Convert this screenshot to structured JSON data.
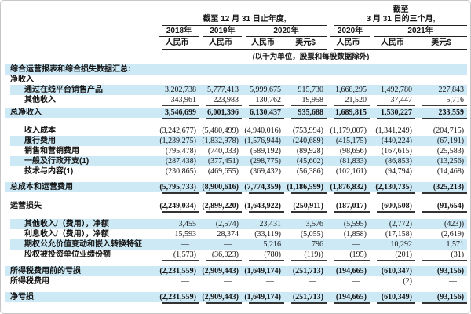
{
  "colors": {
    "highlight": "#cde9f6",
    "rule": "#333333",
    "border": "#c6c6c6"
  },
  "header": {
    "group1": "截至 12 月 31 日止年度,",
    "group2_line1": "截至",
    "group2_line2": "3 月 31 日的三个月,",
    "years": [
      {
        "label": "2018年"
      },
      {
        "label": "2019年"
      },
      {
        "label": "2020年"
      },
      {
        "label": "2020年"
      },
      {
        "label": "2021年"
      }
    ],
    "currencies": [
      "人民币",
      "人民币",
      "人民币",
      "美元$",
      "人民币",
      "人民币",
      "美元$"
    ],
    "unit_note": "(以千为单位，股票和每股数据除外)"
  },
  "rows": [
    {
      "label": "综合运营报表和综合损失数据汇总:",
      "indent": 0,
      "bold": true,
      "highlight": true,
      "values": [
        "",
        "",
        "",
        "",
        "",
        "",
        ""
      ]
    },
    {
      "label": "净收入",
      "indent": 0,
      "bold": true,
      "highlight": false,
      "values": [
        "",
        "",
        "",
        "",
        "",
        "",
        ""
      ]
    },
    {
      "label": "通过在线平台销售产品",
      "indent": 1,
      "bold": false,
      "highlight": true,
      "values": [
        "3,202,738",
        "5,777,413",
        "5,999,675",
        "915,730",
        "1,668,295",
        "1,492,780",
        "227,843"
      ]
    },
    {
      "label": "其他收入",
      "indent": 1,
      "bold": false,
      "highlight": false,
      "values": [
        "343,961",
        "223,983",
        "130,762",
        "19,958",
        "21,520",
        "37,447",
        "5,716"
      ]
    },
    {
      "type": "rule",
      "style": "thin",
      "gap": 3
    },
    {
      "label": "总净收入",
      "indent": 0,
      "bold": true,
      "highlight": true,
      "values": [
        "3,546,699",
        "6,001,396",
        "6,130,437",
        "935,688",
        "1,689,815",
        "1,530,227",
        "233,559"
      ]
    },
    {
      "type": "rule",
      "style": "thick",
      "gap": 10
    },
    {
      "label": "收入成本",
      "indent": 1,
      "bold": false,
      "highlight": false,
      "values": [
        "(3,242,677)",
        "(5,480,499)",
        "(4,940,016)",
        "(753,994)",
        "(1,179,007)",
        "(1,341,249)",
        "(204,715)"
      ]
    },
    {
      "label": "履行费用",
      "indent": 1,
      "bold": false,
      "highlight": true,
      "values": [
        "(1,239,275)",
        "(1,832,978)",
        "(1,576,944)",
        "(240,689)",
        "(415,175)",
        "(440,224)",
        "(67,191)"
      ]
    },
    {
      "label": "销售和营销费用",
      "indent": 1,
      "bold": false,
      "highlight": false,
      "values": [
        "(795,478)",
        "(740,033)",
        "(589,192)",
        "(89,928)",
        "(98,656)",
        "(167,615)",
        "(25,583)"
      ]
    },
    {
      "label": "一般及行政开支(1)",
      "indent": 1,
      "bold": false,
      "highlight": true,
      "values": [
        "(287,438)",
        "(377,451)",
        "(298,775)",
        "(45,602)",
        "(81,833)",
        "(86,853)",
        "(13,256)"
      ]
    },
    {
      "label": "技术与内容(1)",
      "indent": 1,
      "bold": false,
      "highlight": false,
      "values": [
        "(230,865)",
        "(469,655)",
        "(369,432)",
        "(56,386)",
        "(102,161)",
        "(94,794)",
        "(14,468)"
      ]
    },
    {
      "type": "rule",
      "style": "thin",
      "gap": 7
    },
    {
      "label": "总成本和运营费用",
      "indent": 0,
      "bold": true,
      "highlight": true,
      "values": [
        "(5,795,733)",
        "(8,900,616)",
        "(7,774,359)",
        "(1,186,599)",
        "(1,876,832)",
        "(2,130,735)",
        "(325,213)"
      ]
    },
    {
      "type": "rule",
      "style": "thick",
      "gap": 11
    },
    {
      "label": "运营损失",
      "indent": 0,
      "bold": true,
      "highlight": false,
      "values": [
        "(2,249,034)",
        "(2,899,220)",
        "(1,643,922)",
        "(250,911)",
        "(187,017)",
        "(600,508)",
        "(91,654)"
      ]
    },
    {
      "type": "rule",
      "style": "thick",
      "gap": 10
    },
    {
      "label": "其他收入/（费用），净额",
      "indent": 1,
      "bold": false,
      "highlight": true,
      "values": [
        "3,455",
        "(2,574)",
        "23,431",
        "3,576",
        "(5,595)",
        "(2,772)",
        "(423))"
      ]
    },
    {
      "label": "利息收入/（费用），净额",
      "indent": 1,
      "bold": false,
      "highlight": false,
      "values": [
        "15,593",
        "28,374",
        "(33,119)",
        "(5,055)",
        "(1,858)",
        "(17,158)",
        "(2,619)"
      ]
    },
    {
      "label": "期权公允价值变动和嵌入转换特征",
      "indent": 1,
      "bold": false,
      "highlight": true,
      "values": [
        "—",
        "—",
        "5,216",
        "796",
        "—",
        "10,292",
        "1,571"
      ]
    },
    {
      "label": "股权被投资单位业绩份额",
      "indent": 1,
      "bold": false,
      "highlight": false,
      "values": [
        "(1,573)",
        "(36,023)",
        "(780)",
        "(119))",
        "(195)",
        "(201)",
        "(31)"
      ]
    },
    {
      "type": "rule",
      "style": "thin",
      "gap": 8
    },
    {
      "label": "所得税费用前的亏损",
      "indent": 0,
      "bold": true,
      "highlight": true,
      "values": [
        "(2,231,559)",
        "(2,909,443)",
        "(1,649,174)",
        "(251,713)",
        "(194,665)",
        "(610,347)",
        "(93,156)"
      ]
    },
    {
      "label": "所得税费用",
      "indent": 0,
      "bold": false,
      "highlight": false,
      "values": [
        "—",
        "—",
        "—",
        "—",
        "—",
        "(2)",
        "—"
      ]
    },
    {
      "type": "rule",
      "style": "thin",
      "gap": 7
    },
    {
      "label": "净亏损",
      "indent": 0,
      "bold": true,
      "highlight": true,
      "values": [
        "(2,231,559)",
        "(2,909,443)",
        "(1,649,174)",
        "(251,713)",
        "(194,665)",
        "(610,349)",
        "(93,156)"
      ]
    },
    {
      "type": "rule",
      "style": "thick",
      "gap": 14
    }
  ]
}
